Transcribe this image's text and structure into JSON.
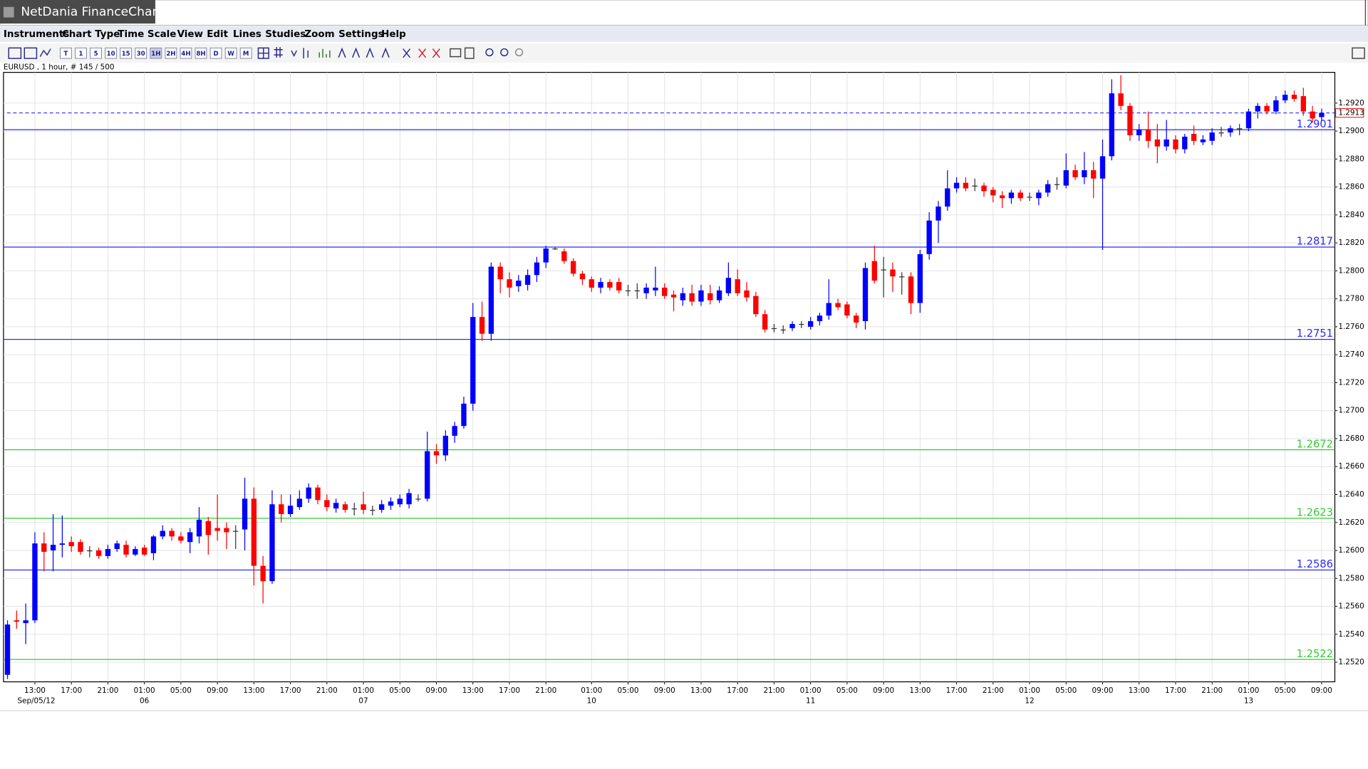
{
  "window": {
    "title": "NetDania FinanceChart"
  },
  "menu": [
    "Instruments",
    "Chart Type",
    "Time Scale",
    "View",
    "Edit",
    "Lines",
    "Studies",
    "Zoom",
    "Settings",
    "Help"
  ],
  "toolbar": [
    "T",
    "1",
    "5",
    "10",
    "15",
    "30",
    "1H",
    "2H",
    "4H",
    "8H",
    "D",
    "W",
    "M"
  ],
  "chart_data": {
    "type": "candlestick",
    "instrument_label": "EURUSD , 1 hour, # 145 / 500",
    "up_color": "#0000ff",
    "down_color": "#ff0000",
    "grid": true,
    "ylim": [
      1.2506,
      1.2942
    ],
    "yticks": [
      {
        "value": 1.252,
        "label": "1.2520"
      },
      {
        "value": 1.254,
        "label": "1.2540"
      },
      {
        "value": 1.256,
        "label": "1.2560"
      },
      {
        "value": 1.258,
        "label": "1.2580"
      },
      {
        "value": 1.26,
        "label": "1.2600"
      },
      {
        "value": 1.262,
        "label": "1.2620"
      },
      {
        "value": 1.264,
        "label": "1.2640"
      },
      {
        "value": 1.266,
        "label": "1.2660"
      },
      {
        "value": 1.268,
        "label": "1.2680"
      },
      {
        "value": 1.27,
        "label": "1.2700"
      },
      {
        "value": 1.272,
        "label": "1.2720"
      },
      {
        "value": 1.274,
        "label": "1.2740"
      },
      {
        "value": 1.276,
        "label": "1.2760"
      },
      {
        "value": 1.278,
        "label": "1.2780"
      },
      {
        "value": 1.28,
        "label": "1.2800"
      },
      {
        "value": 1.282,
        "label": "1.2820"
      },
      {
        "value": 1.284,
        "label": "1.2840"
      },
      {
        "value": 1.286,
        "label": "1.2860"
      },
      {
        "value": 1.288,
        "label": "1.2880"
      },
      {
        "value": 1.29,
        "label": "1.2900"
      },
      {
        "value": 1.292,
        "label": "1.2920"
      }
    ],
    "levels": [
      {
        "value": 1.2901,
        "color": "#2b2bff"
      },
      {
        "value": 1.2817,
        "color": "#2b2bff"
      },
      {
        "value": 1.2751,
        "color": "#2b2bff"
      },
      {
        "value": 1.2672,
        "color": "#33cc33"
      },
      {
        "value": 1.2623,
        "color": "#33cc33"
      },
      {
        "value": 1.2586,
        "color": "#2b2bff"
      },
      {
        "value": 1.2522,
        "color": "#33cc33"
      }
    ],
    "last_price": {
      "value": 1.2913,
      "color": "#2b2bff",
      "label_color": "#ff0000"
    },
    "categories": [
      null,
      null,
      null,
      "13:00",
      null,
      null,
      null,
      "17:00",
      null,
      null,
      null,
      "21:00",
      null,
      null,
      null,
      "01:00",
      null,
      null,
      null,
      "05:00",
      null,
      null,
      null,
      "09:00",
      null,
      null,
      null,
      "13:00",
      null,
      null,
      null,
      "17:00",
      null,
      null,
      null,
      "21:00",
      null,
      null,
      null,
      "01:00",
      null,
      null,
      null,
      "05:00",
      null,
      null,
      null,
      "09:00",
      null,
      null,
      null,
      "13:00",
      null,
      null,
      null,
      "17:00",
      null,
      null,
      null,
      "21:00",
      null,
      null,
      null,
      null,
      "01:00",
      null,
      null,
      null,
      "05:00",
      null,
      null,
      null,
      "09:00",
      null,
      null,
      null,
      "13:00",
      null,
      null,
      null,
      "17:00",
      null,
      null,
      null,
      "21:00",
      null,
      null,
      null,
      "01:00",
      null,
      null,
      null,
      "05:00",
      null,
      null,
      null,
      "09:00",
      null,
      null,
      null,
      "13:00",
      null,
      null,
      null,
      "17:00",
      null,
      null,
      null,
      "21:00",
      null,
      null,
      null,
      "01:00",
      null,
      null,
      null,
      "05:00",
      null,
      null,
      null,
      "09:00",
      null,
      null,
      null,
      "13:00",
      null,
      null,
      null,
      "17:00",
      null,
      null,
      null,
      "21:00",
      null,
      null,
      null,
      "01:00",
      null,
      null,
      null,
      "05:00",
      null,
      null,
      null,
      "09:00"
    ],
    "dates": [
      null,
      null,
      null,
      "Sep/05/12",
      null,
      null,
      null,
      null,
      null,
      null,
      null,
      null,
      null,
      null,
      null,
      "06",
      null,
      null,
      null,
      null,
      null,
      null,
      null,
      null,
      null,
      null,
      null,
      null,
      null,
      null,
      null,
      null,
      null,
      null,
      null,
      null,
      null,
      null,
      null,
      "07",
      null,
      null,
      null,
      null,
      null,
      null,
      null,
      null,
      null,
      null,
      null,
      null,
      null,
      null,
      null,
      null,
      null,
      null,
      null,
      null,
      null,
      null,
      null,
      null,
      "10",
      null,
      null,
      null,
      null,
      null,
      null,
      null,
      null,
      null,
      null,
      null,
      null,
      null,
      null,
      null,
      null,
      null,
      null,
      null,
      null,
      null,
      null,
      null,
      "11",
      null,
      null,
      null,
      null,
      null,
      null,
      null,
      null,
      null,
      null,
      null,
      null,
      null,
      null,
      null,
      null,
      null,
      null,
      null,
      null,
      null,
      null,
      null,
      "12",
      null,
      null,
      null,
      null,
      null,
      null,
      null,
      null,
      null,
      null,
      null,
      null,
      null,
      null,
      null,
      null,
      null,
      null,
      null,
      null,
      null,
      null,
      null,
      "13",
      null,
      null,
      null,
      null,
      null,
      null,
      null,
      null
    ],
    "open": [
      1.2511,
      1.255,
      1.2548,
      1.255,
      1.2605,
      1.26,
      1.2604,
      1.2606,
      1.2606,
      1.26,
      1.26,
      1.2596,
      1.2601,
      1.2604,
      1.2597,
      1.2602,
      1.2598,
      1.261,
      1.2614,
      1.261,
      1.2606,
      1.261,
      1.2621,
      1.2616,
      1.2616,
      1.2614,
      1.2615,
      1.2637,
      1.2589,
      1.2578,
      1.2633,
      1.2626,
      1.2631,
      1.2637,
      1.2645,
      1.2636,
      1.263,
      1.2633,
      1.263,
      1.2633,
      1.2629,
      1.2629,
      1.2632,
      1.2633,
      1.2633,
      1.2637,
      1.2637,
      1.2671,
      1.2668,
      1.2682,
      1.2689,
      1.2705,
      1.2767,
      1.2755,
      1.2803,
      1.2794,
      1.2789,
      1.279,
      1.2797,
      1.2806,
      1.2816,
      1.2814,
      1.2807,
      1.2798,
      1.2794,
      1.2788,
      1.2792,
      1.2792,
      1.2786,
      1.2786,
      1.2784,
      1.2786,
      1.2788,
      1.2783,
      1.2779,
      1.2784,
      1.2778,
      1.2784,
      1.2779,
      1.2784,
      1.2794,
      1.2786,
      1.2782,
      1.2769,
      1.2759,
      1.2758,
      1.2759,
      1.2762,
      1.276,
      1.2764,
      1.2768,
      1.2777,
      1.2776,
      1.2768,
      1.2764,
      1.2807,
      1.2801,
      1.2801,
      1.2796,
      1.2796,
      1.2777,
      1.2812,
      1.2836,
      1.2846,
      1.2859,
      1.2863,
      1.2861,
      1.2861,
      1.2858,
      1.2854,
      1.2852,
      1.2856,
      1.2853,
      1.2852,
      1.2856,
      1.2862,
      1.2861,
      1.2872,
      1.2867,
      1.2872,
      1.2866,
      1.2882,
      1.2927,
      1.2918,
      1.2897,
      1.2901,
      1.2894,
      1.2889,
      1.2894,
      1.2887,
      1.2898,
      1.2892,
      1.2893,
      1.2899,
      1.2899,
      1.2902,
      1.2902,
      1.2914,
      1.2918,
      1.2914,
      1.2922,
      1.2926,
      1.2925,
      1.2914,
      1.291
    ],
    "high": [
      1.255,
      1.2557,
      1.2562,
      1.2613,
      1.2613,
      1.2626,
      1.2625,
      1.261,
      1.2608,
      1.2603,
      1.2602,
      1.2604,
      1.2607,
      1.2607,
      1.2603,
      1.2604,
      1.2611,
      1.2618,
      1.2616,
      1.2613,
      1.2616,
      1.2631,
      1.2624,
      1.264,
      1.262,
      1.2618,
      1.2652,
      1.2645,
      1.2596,
      1.2643,
      1.264,
      1.264,
      1.2643,
      1.2648,
      1.2647,
      1.264,
      1.2637,
      1.2635,
      1.2634,
      1.2642,
      1.2632,
      1.2636,
      1.2638,
      1.264,
      1.2644,
      1.264,
      1.2685,
      1.2676,
      1.2686,
      1.2692,
      1.271,
      1.2777,
      1.2778,
      1.2806,
      1.2806,
      1.2799,
      1.2797,
      1.2801,
      1.281,
      1.2818,
      1.2817,
      1.2816,
      1.2809,
      1.28,
      1.2796,
      1.2795,
      1.2794,
      1.2795,
      1.279,
      1.2791,
      1.2791,
      1.2803,
      1.2791,
      1.2786,
      1.2788,
      1.279,
      1.279,
      1.279,
      1.2789,
      1.2806,
      1.2801,
      1.2792,
      1.2785,
      1.2772,
      1.2762,
      1.2761,
      1.2764,
      1.2764,
      1.2767,
      1.277,
      1.2794,
      1.278,
      1.2778,
      1.277,
      1.2806,
      1.2818,
      1.281,
      1.2806,
      1.2799,
      1.2799,
      1.2815,
      1.2842,
      1.285,
      1.2872,
      1.2867,
      1.2867,
      1.2866,
      1.2863,
      1.286,
      1.2857,
      1.2858,
      1.2858,
      1.2856,
      1.2858,
      1.2865,
      1.2867,
      1.2884,
      1.2876,
      1.2885,
      1.2878,
      1.2894,
      1.2937,
      1.294,
      1.292,
      1.2905,
      1.2914,
      1.2905,
      1.2908,
      1.2897,
      1.2898,
      1.2904,
      1.2897,
      1.2902,
      1.2903,
      1.2904,
      1.2905,
      1.2916,
      1.292,
      1.292,
      1.2925,
      1.2929,
      1.2929,
      1.2931,
      1.2918,
      1.2916
    ],
    "low": [
      1.2508,
      1.2544,
      1.2533,
      1.2548,
      1.2585,
      1.2585,
      1.2595,
      1.2599,
      1.2597,
      1.2595,
      1.2594,
      1.2594,
      1.2599,
      1.2595,
      1.2596,
      1.2596,
      1.2593,
      1.2608,
      1.2607,
      1.2605,
      1.2598,
      1.2605,
      1.2597,
      1.2607,
      1.2601,
      1.2601,
      1.26,
      1.2575,
      1.2562,
      1.2576,
      1.262,
      1.2624,
      1.2629,
      1.2634,
      1.2633,
      1.2628,
      1.2627,
      1.2627,
      1.2625,
      1.2626,
      1.2625,
      1.2627,
      1.2629,
      1.2631,
      1.263,
      1.2635,
      1.2635,
      1.2662,
      1.2664,
      1.2677,
      1.2687,
      1.27,
      1.275,
      1.275,
      1.2784,
      1.2781,
      1.2785,
      1.2786,
      1.2792,
      1.2802,
      1.2815,
      1.2805,
      1.2796,
      1.279,
      1.2785,
      1.2784,
      1.2786,
      1.2784,
      1.2782,
      1.278,
      1.278,
      1.2782,
      1.278,
      1.2771,
      1.2775,
      1.2775,
      1.2775,
      1.2776,
      1.2777,
      1.2782,
      1.2782,
      1.2778,
      1.2767,
      1.2756,
      1.2756,
      1.2755,
      1.2757,
      1.2759,
      1.2758,
      1.2761,
      1.2765,
      1.2772,
      1.2766,
      1.2759,
      1.2758,
      1.2791,
      1.2781,
      1.2785,
      1.2783,
      1.2769,
      1.277,
      1.2808,
      1.282,
      1.2843,
      1.2856,
      1.2857,
      1.2857,
      1.2853,
      1.2849,
      1.2845,
      1.2848,
      1.285,
      1.285,
      1.2847,
      1.2853,
      1.2858,
      1.2859,
      1.2865,
      1.2862,
      1.2852,
      1.2815,
      1.2879,
      1.2915,
      1.2893,
      1.2893,
      1.2888,
      1.2877,
      1.2886,
      1.2884,
      1.2884,
      1.289,
      1.289,
      1.289,
      1.2896,
      1.2896,
      1.2897,
      1.29,
      1.2909,
      1.2912,
      1.2912,
      1.292,
      1.2921,
      1.2911,
      1.2906,
      1.2907
    ],
    "close": [
      1.2547,
      1.2549,
      1.255,
      1.2605,
      1.2599,
      1.2604,
      1.2605,
      1.2603,
      1.2599,
      1.26,
      1.2596,
      1.2601,
      1.2605,
      1.2597,
      1.2601,
      1.2597,
      1.261,
      1.2614,
      1.261,
      1.2607,
      1.2613,
      1.2622,
      1.2611,
      1.2614,
      1.2613,
      1.2614,
      1.2637,
      1.2589,
      1.2578,
      1.2633,
      1.2626,
      1.2632,
      1.2637,
      1.2645,
      1.2636,
      1.2631,
      1.2634,
      1.2629,
      1.263,
      1.2629,
      1.2629,
      1.2633,
      1.2635,
      1.2637,
      1.2641,
      1.2637,
      1.2671,
      1.2668,
      1.2682,
      1.2689,
      1.2705,
      1.2767,
      1.2755,
      1.2803,
      1.2794,
      1.2788,
      1.2793,
      1.2797,
      1.2806,
      1.2816,
      1.2816,
      1.2807,
      1.2798,
      1.2794,
      1.2788,
      1.2792,
      1.2788,
      1.2786,
      1.2786,
      1.2786,
      1.2788,
      1.2788,
      1.2782,
      1.2781,
      1.2784,
      1.2778,
      1.2786,
      1.2779,
      1.2786,
      1.2795,
      1.2784,
      1.2781,
      1.2769,
      1.2758,
      1.2759,
      1.2758,
      1.2762,
      1.2762,
      1.2764,
      1.2768,
      1.2777,
      1.2774,
      1.2768,
      1.2763,
      1.2802,
      1.2793,
      1.2801,
      1.2796,
      1.2796,
      1.2777,
      1.2812,
      1.2836,
      1.2846,
      1.2859,
      1.2863,
      1.2859,
      1.2861,
      1.2857,
      1.2854,
      1.2852,
      1.2856,
      1.2852,
      1.2853,
      1.2856,
      1.2862,
      1.2862,
      1.2872,
      1.2867,
      1.2872,
      1.2866,
      1.2882,
      1.2927,
      1.2918,
      1.2897,
      1.2901,
      1.2893,
      1.2889,
      1.2894,
      1.2887,
      1.2896,
      1.2893,
      1.2894,
      1.2899,
      1.2899,
      1.2902,
      1.2902,
      1.2914,
      1.2918,
      1.2914,
      1.2922,
      1.2926,
      1.2923,
      1.2914,
      1.2909,
      1.2913
    ]
  }
}
